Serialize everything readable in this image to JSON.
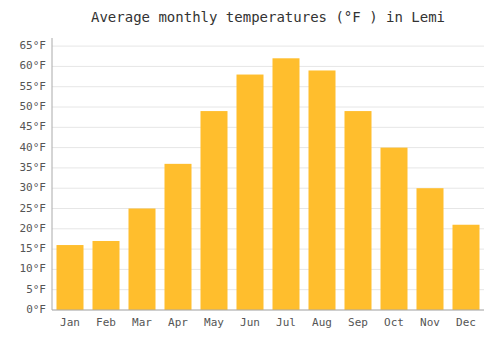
{
  "chart_data": {
    "type": "bar",
    "title": "Average monthly temperatures (°F ) in Lemi",
    "categories": [
      "Jan",
      "Feb",
      "Mar",
      "Apr",
      "May",
      "Jun",
      "Jul",
      "Aug",
      "Sep",
      "Oct",
      "Nov",
      "Dec"
    ],
    "values": [
      16,
      17,
      25,
      36,
      49,
      58,
      62,
      59,
      49,
      40,
      30,
      21
    ],
    "color": "#FFBE2D",
    "ylim": [
      0,
      67
    ],
    "yticks": [
      {
        "value": 0,
        "label": "0°F"
      },
      {
        "value": 5,
        "label": "5°F"
      },
      {
        "value": 10,
        "label": "10°F"
      },
      {
        "value": 15,
        "label": "15°F"
      },
      {
        "value": 20,
        "label": "20°F"
      },
      {
        "value": 25,
        "label": "25°F"
      },
      {
        "value": 30,
        "label": "30°F"
      },
      {
        "value": 35,
        "label": "35°F"
      },
      {
        "value": 40,
        "label": "40°F"
      },
      {
        "value": 45,
        "label": "45°F"
      },
      {
        "value": 50,
        "label": "50°F"
      },
      {
        "value": 55,
        "label": "55°F"
      },
      {
        "value": 60,
        "label": "60°F"
      },
      {
        "value": 65,
        "label": "65°F"
      }
    ],
    "grid": true
  }
}
